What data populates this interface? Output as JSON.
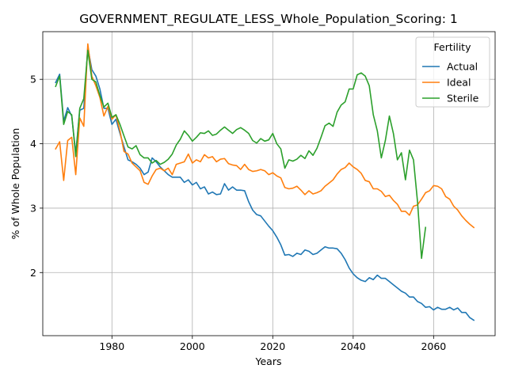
{
  "chart_data": {
    "type": "line",
    "title": "GOVERNMENT_REGULATE_LESS_Whole_Population_Scoring: 1",
    "xlabel": "Years",
    "ylabel": "% of Whole Population",
    "xlim": [
      1962.8,
      2075.3
    ],
    "ylim": [
      1.02,
      5.74
    ],
    "xticks": [
      1980,
      2000,
      2020,
      2040,
      2060
    ],
    "yticks": [
      2,
      3,
      4,
      5
    ],
    "grid": true,
    "legend": {
      "title": "Fertility",
      "placement": "top-right"
    },
    "series": [
      {
        "name": "Actual",
        "color": "#1f77b4",
        "x": [
          1966,
          1967,
          1968,
          1969,
          1970,
          1971,
          1972,
          1973,
          1974,
          1975,
          1976,
          1977,
          1978,
          1979,
          1980,
          1981,
          1982,
          1983,
          1984,
          1985,
          1986,
          1987,
          1988,
          1989,
          1990,
          1991,
          1992,
          1993,
          1994,
          1995,
          1996,
          1997,
          1998,
          1999,
          2000,
          2001,
          2002,
          2003,
          2004,
          2005,
          2006,
          2007,
          2008,
          2009,
          2010,
          2011,
          2012,
          2013,
          2014,
          2015,
          2016,
          2017,
          2018,
          2019,
          2020,
          2021,
          2022,
          2023,
          2024,
          2025,
          2026,
          2027,
          2028,
          2029,
          2030,
          2031,
          2032,
          2033,
          2034,
          2035,
          2036,
          2037,
          2038,
          2039,
          2040,
          2041,
          2042,
          2043,
          2044,
          2045,
          2046,
          2047,
          2048,
          2049,
          2050,
          2051,
          2052,
          2053,
          2054,
          2055,
          2056,
          2057,
          2058,
          2059,
          2060,
          2061,
          2062,
          2063,
          2064,
          2065,
          2066,
          2067,
          2068,
          2069,
          2070
        ],
        "y": [
          4.95,
          5.08,
          4.35,
          4.56,
          4.43,
          3.85,
          4.52,
          4.55,
          5.5,
          5.15,
          5.05,
          4.85,
          4.55,
          4.55,
          4.3,
          4.38,
          4.16,
          3.95,
          3.75,
          3.72,
          3.68,
          3.62,
          3.52,
          3.56,
          3.78,
          3.72,
          3.64,
          3.58,
          3.52,
          3.48,
          3.48,
          3.48,
          3.4,
          3.44,
          3.36,
          3.4,
          3.3,
          3.33,
          3.22,
          3.25,
          3.21,
          3.22,
          3.38,
          3.28,
          3.33,
          3.28,
          3.28,
          3.27,
          3.1,
          2.97,
          2.9,
          2.88,
          2.8,
          2.72,
          2.65,
          2.55,
          2.43,
          2.27,
          2.28,
          2.25,
          2.3,
          2.28,
          2.35,
          2.33,
          2.28,
          2.3,
          2.35,
          2.4,
          2.38,
          2.38,
          2.37,
          2.3,
          2.2,
          2.07,
          1.98,
          1.92,
          1.88,
          1.86,
          1.92,
          1.89,
          1.96,
          1.91,
          1.91,
          1.86,
          1.81,
          1.76,
          1.71,
          1.68,
          1.62,
          1.62,
          1.55,
          1.52,
          1.46,
          1.47,
          1.42,
          1.46,
          1.43,
          1.43,
          1.46,
          1.42,
          1.45,
          1.38,
          1.38,
          1.3,
          1.26
        ]
      },
      {
        "name": "Ideal",
        "color": "#ff7f0e",
        "x": [
          1966,
          1967,
          1968,
          1969,
          1970,
          1971,
          1972,
          1973,
          1974,
          1975,
          1976,
          1977,
          1978,
          1979,
          1980,
          1981,
          1982,
          1983,
          1984,
          1985,
          1986,
          1987,
          1988,
          1989,
          1990,
          1991,
          1992,
          1993,
          1994,
          1995,
          1996,
          1997,
          1998,
          1999,
          2000,
          2001,
          2002,
          2003,
          2004,
          2005,
          2006,
          2007,
          2008,
          2009,
          2010,
          2011,
          2012,
          2013,
          2014,
          2015,
          2016,
          2017,
          2018,
          2019,
          2020,
          2021,
          2022,
          2023,
          2024,
          2025,
          2026,
          2027,
          2028,
          2029,
          2030,
          2031,
          2032,
          2033,
          2034,
          2035,
          2036,
          2037,
          2038,
          2039,
          2040,
          2041,
          2042,
          2043,
          2044,
          2045,
          2046,
          2047,
          2048,
          2049,
          2050,
          2051,
          2052,
          2053,
          2054,
          2055,
          2056,
          2057,
          2058,
          2059,
          2060,
          2061,
          2062,
          2063,
          2064,
          2065,
          2066,
          2067,
          2068,
          2069,
          2070
        ],
        "y": [
          3.92,
          4.03,
          3.43,
          4.05,
          4.1,
          3.52,
          4.4,
          4.27,
          5.55,
          5.05,
          4.9,
          4.72,
          4.43,
          4.58,
          4.38,
          4.45,
          4.2,
          3.88,
          3.84,
          3.7,
          3.64,
          3.58,
          3.4,
          3.37,
          3.5,
          3.6,
          3.62,
          3.58,
          3.62,
          3.52,
          3.68,
          3.7,
          3.72,
          3.84,
          3.7,
          3.75,
          3.72,
          3.83,
          3.78,
          3.8,
          3.72,
          3.76,
          3.77,
          3.69,
          3.67,
          3.66,
          3.6,
          3.68,
          3.6,
          3.57,
          3.58,
          3.6,
          3.58,
          3.52,
          3.55,
          3.5,
          3.47,
          3.32,
          3.3,
          3.31,
          3.34,
          3.28,
          3.21,
          3.27,
          3.22,
          3.24,
          3.27,
          3.34,
          3.39,
          3.44,
          3.53,
          3.6,
          3.63,
          3.7,
          3.64,
          3.6,
          3.54,
          3.43,
          3.41,
          3.3,
          3.3,
          3.26,
          3.18,
          3.2,
          3.12,
          3.06,
          2.95,
          2.95,
          2.89,
          3.03,
          3.05,
          3.14,
          3.24,
          3.27,
          3.35,
          3.34,
          3.3,
          3.18,
          3.14,
          3.03,
          2.97,
          2.88,
          2.81,
          2.75,
          2.7
        ]
      },
      {
        "name": "Sterile",
        "color": "#2ca02c",
        "x": [
          1966,
          1967,
          1968,
          1969,
          1970,
          1971,
          1972,
          1973,
          1974,
          1975,
          1976,
          1977,
          1978,
          1979,
          1980,
          1981,
          1982,
          1983,
          1984,
          1985,
          1986,
          1987,
          1988,
          1989,
          1990,
          1991,
          1992,
          1993,
          1994,
          1995,
          1996,
          1997,
          1998,
          1999,
          2000,
          2001,
          2002,
          2003,
          2004,
          2005,
          2006,
          2007,
          2008,
          2009,
          2010,
          2011,
          2012,
          2013,
          2014,
          2015,
          2016,
          2017,
          2018,
          2019,
          2020,
          2021,
          2022,
          2023,
          2024,
          2025,
          2026,
          2027,
          2028,
          2029,
          2030,
          2031,
          2032,
          2033,
          2034,
          2035,
          2036,
          2037,
          2038,
          2039,
          2040,
          2041,
          2042,
          2043,
          2044,
          2045,
          2046,
          2047,
          2048,
          2049,
          2050,
          2051,
          2052,
          2053,
          2054,
          2055,
          2056,
          2057,
          2058
        ],
        "y": [
          4.89,
          5.05,
          4.3,
          4.5,
          4.45,
          3.8,
          4.55,
          4.7,
          5.45,
          5.0,
          4.96,
          4.75,
          4.57,
          4.63,
          4.41,
          4.45,
          4.3,
          4.12,
          3.95,
          3.92,
          3.97,
          3.83,
          3.78,
          3.78,
          3.7,
          3.74,
          3.68,
          3.71,
          3.76,
          3.84,
          3.98,
          4.07,
          4.2,
          4.13,
          4.04,
          4.1,
          4.17,
          4.16,
          4.2,
          4.13,
          4.15,
          4.21,
          4.26,
          4.21,
          4.16,
          4.22,
          4.25,
          4.21,
          4.16,
          4.05,
          4.01,
          4.08,
          4.04,
          4.06,
          4.16,
          4.0,
          3.92,
          3.62,
          3.75,
          3.73,
          3.76,
          3.82,
          3.77,
          3.89,
          3.82,
          3.93,
          4.1,
          4.28,
          4.32,
          4.27,
          4.49,
          4.6,
          4.65,
          4.85,
          4.85,
          5.07,
          5.1,
          5.05,
          4.9,
          4.45,
          4.2,
          3.78,
          4.05,
          4.43,
          4.16,
          3.75,
          3.86,
          3.44,
          3.9,
          3.75,
          3.1,
          2.22,
          2.7
        ]
      }
    ]
  }
}
